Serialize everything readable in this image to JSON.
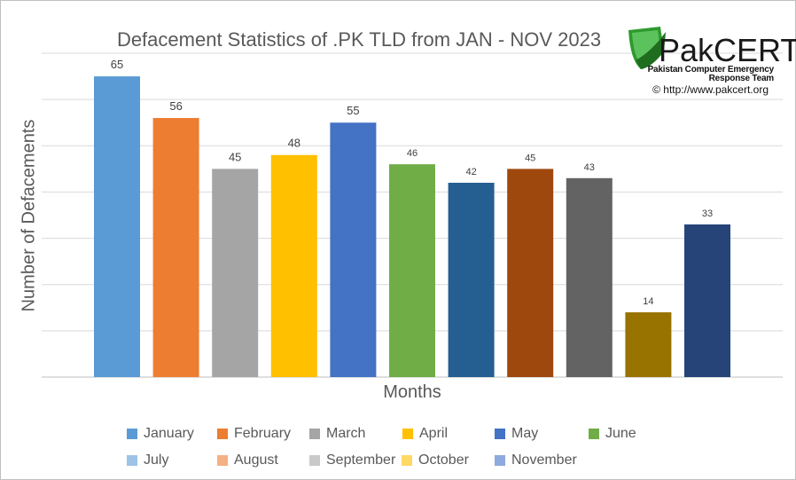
{
  "chart_data": {
    "type": "bar",
    "title": "Defacement Statistics of .PK TLD from JAN - NOV 2023",
    "xlabel": "Months",
    "ylabel": "Number of Defacements",
    "ylim": [
      0,
      70
    ],
    "grid": true,
    "legend_position": "bottom",
    "categories": [
      "January",
      "February",
      "March",
      "April",
      "May",
      "June",
      "July",
      "August",
      "September",
      "October",
      "November"
    ],
    "values": [
      65,
      56,
      45,
      48,
      55,
      46,
      42,
      45,
      43,
      14,
      33
    ],
    "value_labels": [
      "65",
      "56",
      "45",
      "48",
      "55",
      "46",
      "42",
      "45",
      "43",
      "14",
      "33"
    ],
    "bar_colors": [
      "#5b9bd5",
      "#ed7d31",
      "#a5a5a5",
      "#ffc000",
      "#4472c4",
      "#70ad47",
      "#255e91",
      "#9e480e",
      "#636363",
      "#997300",
      "#264478"
    ],
    "legend": [
      {
        "label": "January",
        "color": "#5b9bd5"
      },
      {
        "label": "February",
        "color": "#ed7d31"
      },
      {
        "label": "March",
        "color": "#a5a5a5"
      },
      {
        "label": "April",
        "color": "#ffc000"
      },
      {
        "label": "May",
        "color": "#4472c4"
      },
      {
        "label": "June",
        "color": "#70ad47"
      },
      {
        "label": "July",
        "color": "#9dc3e6"
      },
      {
        "label": "August",
        "color": "#f4b183"
      },
      {
        "label": "September",
        "color": "#c9c9c9"
      },
      {
        "label": "October",
        "color": "#ffd966"
      },
      {
        "label": "November",
        "color": "#8faadc"
      }
    ]
  },
  "logo": {
    "brand": "PakCERT",
    "tagline_line1": "Pakistan Computer Emergency",
    "tagline_line2": "Response Team",
    "url": "© http://www.pakcert.org",
    "colors": {
      "shield_green": "#2e9a2e",
      "shield_dark": "#1f6e1f",
      "text": "#111111"
    }
  }
}
